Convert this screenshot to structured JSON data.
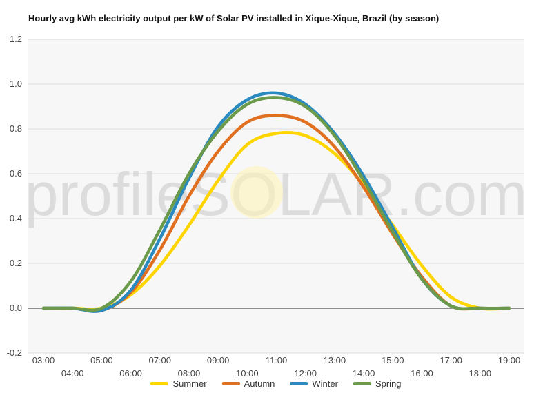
{
  "chart_data": {
    "type": "line",
    "title": "Hourly avg kWh electricity output per kW of Solar PV installed in Xique-Xique, Brazil (by season)",
    "xlabel": "",
    "ylabel": "",
    "ylim": [
      -0.2,
      1.2
    ],
    "yticks": [
      "1.2",
      "1.0",
      "0.8",
      "0.6",
      "0.4",
      "0.2",
      "0.0",
      "-0.2"
    ],
    "ytick_values": [
      1.2,
      1.0,
      0.8,
      0.6,
      0.4,
      0.2,
      0.0,
      -0.2
    ],
    "x": [
      "03:00",
      "04:00",
      "05:00",
      "06:00",
      "07:00",
      "08:00",
      "09:00",
      "10:00",
      "11:00",
      "12:00",
      "13:00",
      "14:00",
      "15:00",
      "16:00",
      "17:00",
      "18:00",
      "19:00"
    ],
    "grid": true,
    "legend_position": "bottom",
    "watermark": "profileSOLAR.com",
    "series": [
      {
        "name": "Summer",
        "color": "#FFD500",
        "values": [
          0,
          0,
          0,
          0.06,
          0.19,
          0.37,
          0.57,
          0.73,
          0.78,
          0.77,
          0.69,
          0.55,
          0.37,
          0.19,
          0.05,
          0,
          0
        ]
      },
      {
        "name": "Autumn",
        "color": "#E07020",
        "values": [
          0,
          0,
          -0.01,
          0.07,
          0.26,
          0.5,
          0.7,
          0.83,
          0.86,
          0.83,
          0.72,
          0.54,
          0.33,
          0.14,
          0.01,
          0,
          0
        ]
      },
      {
        "name": "Winter",
        "color": "#2A8AC0",
        "values": [
          0,
          0,
          -0.01,
          0.08,
          0.31,
          0.58,
          0.81,
          0.93,
          0.96,
          0.91,
          0.78,
          0.59,
          0.36,
          0.13,
          0.01,
          0,
          0
        ]
      },
      {
        "name": "Spring",
        "color": "#6A9A4A",
        "values": [
          0,
          0,
          0,
          0.12,
          0.35,
          0.6,
          0.79,
          0.91,
          0.94,
          0.9,
          0.77,
          0.57,
          0.34,
          0.13,
          0.01,
          0,
          0
        ]
      }
    ]
  }
}
